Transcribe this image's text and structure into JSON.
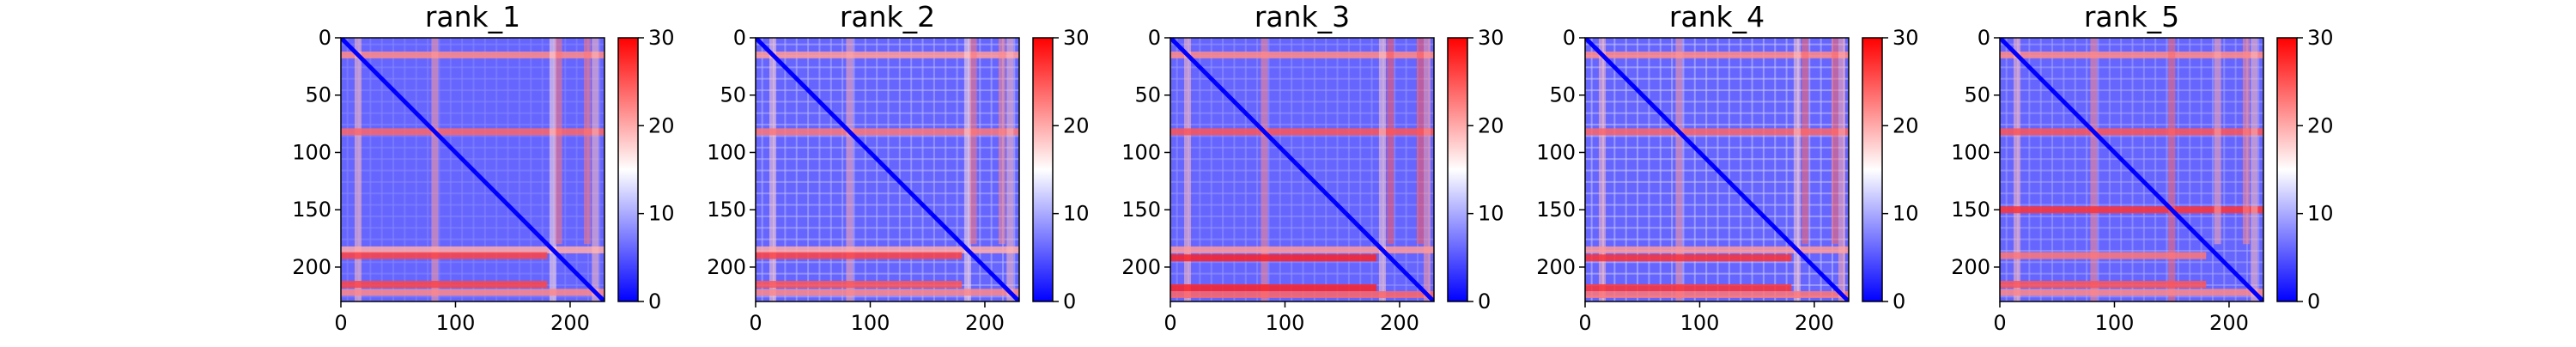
{
  "chart_data": [
    {
      "type": "heatmap",
      "title": "rank_1",
      "xlim": [
        0,
        230
      ],
      "ylim": [
        230,
        0
      ],
      "xticks": [
        0,
        100,
        200
      ],
      "yticks": [
        0,
        50,
        100,
        150,
        200
      ],
      "colorbar": {
        "range": [
          0,
          30
        ],
        "ticks": [
          0,
          10,
          20,
          30
        ],
        "colormap": "bwr"
      },
      "grid": false,
      "bands": [
        {
          "pos": 15,
          "level": 22,
          "extent": 230
        },
        {
          "pos": 82,
          "level": 24,
          "extent": 230
        },
        {
          "pos": 185,
          "level": 20,
          "extent": 230
        },
        {
          "pos": 190,
          "level": 26,
          "extent": 180
        },
        {
          "pos": 215,
          "level": 26,
          "extent": 180
        },
        {
          "pos": 222,
          "level": 22,
          "extent": 230
        }
      ]
    },
    {
      "type": "heatmap",
      "title": "rank_2",
      "xlim": [
        0,
        230
      ],
      "ylim": [
        230,
        0
      ],
      "xticks": [
        0,
        100,
        200
      ],
      "yticks": [
        0,
        50,
        100,
        150,
        200
      ],
      "colorbar": {
        "range": [
          0,
          30
        ],
        "ticks": [
          0,
          10,
          20,
          30
        ],
        "colormap": "bwr"
      },
      "grid": false,
      "bands": [
        {
          "pos": 15,
          "level": 21,
          "extent": 230
        },
        {
          "pos": 82,
          "level": 23,
          "extent": 230
        },
        {
          "pos": 185,
          "level": 20,
          "extent": 230
        },
        {
          "pos": 190,
          "level": 26,
          "extent": 180
        },
        {
          "pos": 215,
          "level": 25,
          "extent": 180
        },
        {
          "pos": 222,
          "level": 22,
          "extent": 230
        }
      ]
    },
    {
      "type": "heatmap",
      "title": "rank_3",
      "xlim": [
        0,
        230
      ],
      "ylim": [
        230,
        0
      ],
      "xticks": [
        0,
        100,
        200
      ],
      "yticks": [
        0,
        50,
        100,
        150,
        200
      ],
      "colorbar": {
        "range": [
          0,
          30
        ],
        "ticks": [
          0,
          10,
          20,
          30
        ],
        "colormap": "bwr"
      },
      "grid": false,
      "bands": [
        {
          "pos": 15,
          "level": 22,
          "extent": 230
        },
        {
          "pos": 82,
          "level": 25,
          "extent": 230
        },
        {
          "pos": 185,
          "level": 21,
          "extent": 230
        },
        {
          "pos": 192,
          "level": 28,
          "extent": 180
        },
        {
          "pos": 218,
          "level": 28,
          "extent": 180
        },
        {
          "pos": 224,
          "level": 24,
          "extent": 230
        }
      ]
    },
    {
      "type": "heatmap",
      "title": "rank_4",
      "xlim": [
        0,
        230
      ],
      "ylim": [
        230,
        0
      ],
      "xticks": [
        0,
        100,
        200
      ],
      "yticks": [
        0,
        50,
        100,
        150,
        200
      ],
      "colorbar": {
        "range": [
          0,
          30
        ],
        "ticks": [
          0,
          10,
          20,
          30
        ],
        "colormap": "bwr"
      },
      "grid": false,
      "bands": [
        {
          "pos": 15,
          "level": 22,
          "extent": 230
        },
        {
          "pos": 82,
          "level": 24,
          "extent": 230
        },
        {
          "pos": 185,
          "level": 21,
          "extent": 230
        },
        {
          "pos": 192,
          "level": 27,
          "extent": 180
        },
        {
          "pos": 218,
          "level": 27,
          "extent": 180
        },
        {
          "pos": 224,
          "level": 23,
          "extent": 230
        }
      ]
    },
    {
      "type": "heatmap",
      "title": "rank_5",
      "xlim": [
        0,
        230
      ],
      "ylim": [
        230,
        0
      ],
      "xticks": [
        0,
        100,
        200
      ],
      "yticks": [
        0,
        50,
        100,
        150,
        200
      ],
      "colorbar": {
        "range": [
          0,
          30
        ],
        "ticks": [
          0,
          10,
          20,
          30
        ],
        "colormap": "bwr"
      },
      "grid": false,
      "bands": [
        {
          "pos": 15,
          "level": 22,
          "extent": 230
        },
        {
          "pos": 82,
          "level": 25,
          "extent": 230
        },
        {
          "pos": 150,
          "level": 27,
          "extent": 230
        },
        {
          "pos": 190,
          "level": 23,
          "extent": 180
        },
        {
          "pos": 215,
          "level": 25,
          "extent": 180
        },
        {
          "pos": 222,
          "level": 22,
          "extent": 230
        }
      ]
    }
  ]
}
